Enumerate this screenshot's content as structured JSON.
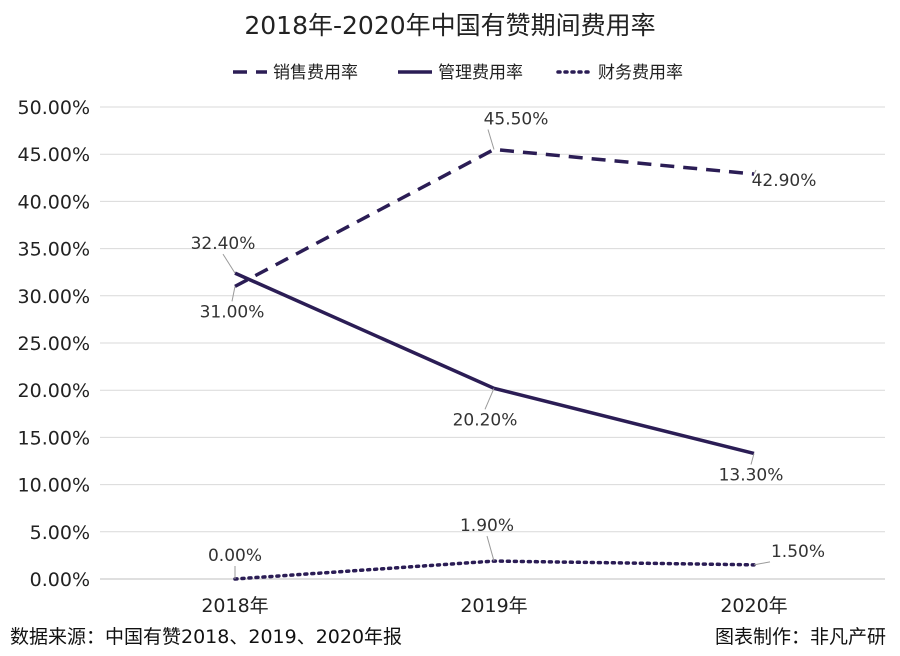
{
  "chart_data": {
    "type": "line",
    "title": "2018年-2020年中国有赞期间费用率",
    "categories": [
      "2018年",
      "2019年",
      "2020年"
    ],
    "ylim": [
      0,
      50
    ],
    "yticks": [
      "0.00%",
      "5.00%",
      "10.00%",
      "15.00%",
      "20.00%",
      "25.00%",
      "30.00%",
      "35.00%",
      "40.00%",
      "45.00%",
      "50.00%"
    ],
    "grid": true,
    "legend_position": "top",
    "series": [
      {
        "name": "销售费用率",
        "values": [
          31.0,
          45.5,
          42.9
        ],
        "labels": [
          "31.00%",
          "45.50%",
          "42.90%"
        ],
        "style": "dashed",
        "color": "#2b1d55"
      },
      {
        "name": "管理费用率",
        "values": [
          32.4,
          20.2,
          13.3
        ],
        "labels": [
          "32.40%",
          "20.20%",
          "13.30%"
        ],
        "style": "solid",
        "color": "#2b1d55"
      },
      {
        "name": "财务费用率",
        "values": [
          0.0,
          1.9,
          1.5
        ],
        "labels": [
          "0.00%",
          "1.90%",
          "1.50%"
        ],
        "style": "dotted",
        "color": "#2b1d55"
      }
    ]
  },
  "footer": {
    "source": "数据来源：中国有赞2018、2019、2020年报",
    "credit": "图表制作：非凡产研"
  }
}
